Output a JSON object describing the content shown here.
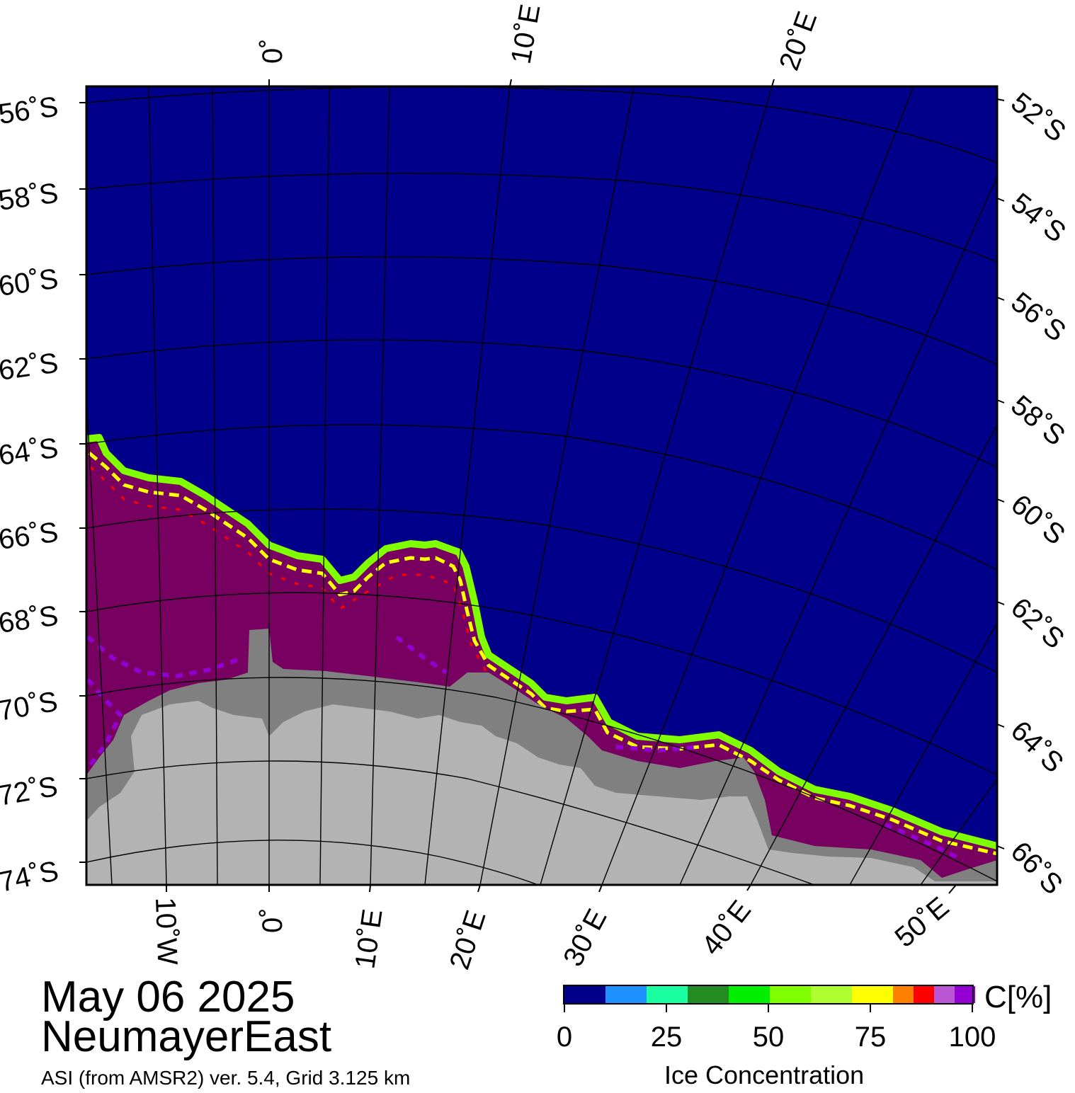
{
  "map": {
    "date": "May 06 2025",
    "region": "NeumayerEast",
    "product": "ASI (from AMSR2) ver. 5.4,  Grid 3.125 km",
    "colors": {
      "ocean": "#00008b",
      "land_ice": "#b3b3b3",
      "ice_shelf": "#808080",
      "pack_ice": "#780060",
      "graticule": "#000000"
    },
    "graticule_labels": {
      "top": [
        "0˚",
        "10˚E",
        "20˚E"
      ],
      "bottom": [
        "10˚W",
        "0˚",
        "10˚E",
        "20˚E",
        "30˚E",
        "40˚E",
        "50˚E"
      ],
      "left": [
        "56˚S",
        "58˚S",
        "60˚S",
        "62˚S",
        "64˚S",
        "66˚S",
        "68˚S",
        "70˚S",
        "72˚S",
        "74˚S"
      ],
      "right": [
        "52˚S",
        "54˚S",
        "56˚S",
        "58˚S",
        "60˚S",
        "62˚S",
        "64˚S",
        "66˚S"
      ]
    }
  },
  "colorbar": {
    "unit": "C[%]",
    "title": "Ice Concentration",
    "ticks": [
      "0",
      "25",
      "50",
      "75",
      "100"
    ],
    "colors": [
      "#00008b",
      "#1e90ff",
      "#1affa0",
      "#228b22",
      "#00ee00",
      "#7fff00",
      "#adff2f",
      "#ffff00",
      "#ff7f00",
      "#ff0000",
      "#ba55d3",
      "#9400d3"
    ]
  }
}
